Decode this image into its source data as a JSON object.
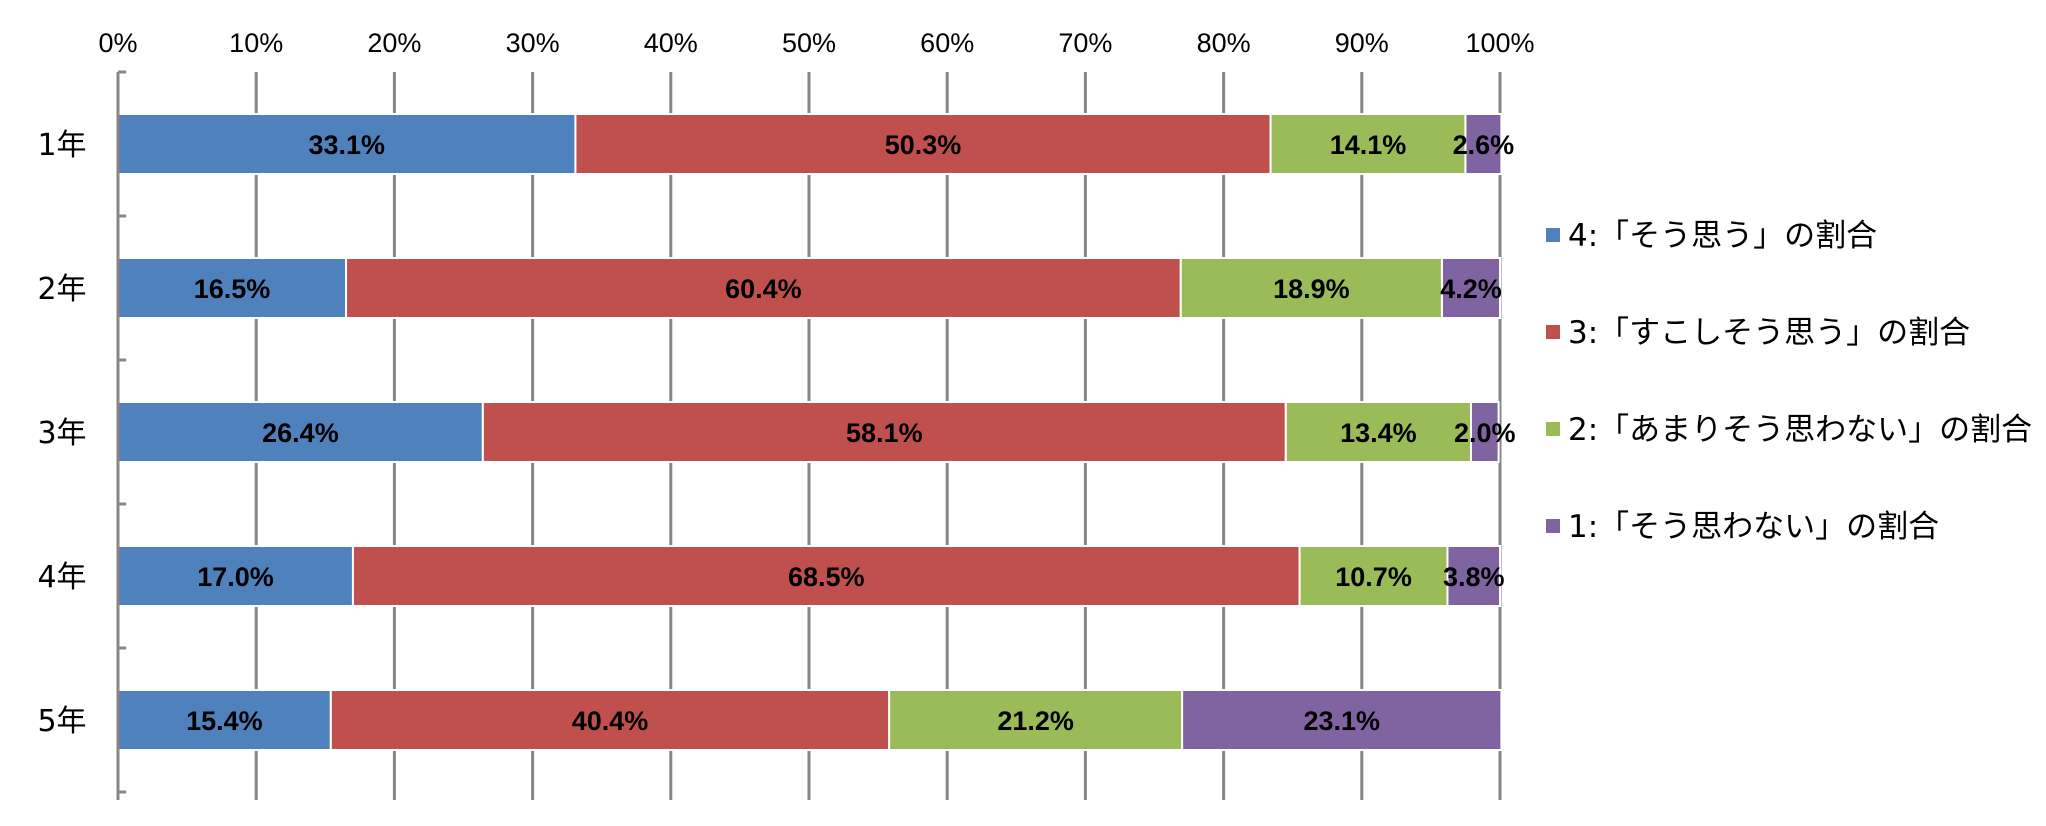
{
  "chart_data": {
    "type": "bar",
    "orientation": "horizontal",
    "stacked": "percent",
    "categories": [
      "1年",
      "2年",
      "3年",
      "4年",
      "5年"
    ],
    "series": [
      {
        "name": "4:「そう思う」の割合",
        "color": "#4f81bd",
        "values": [
          33.1,
          16.5,
          26.4,
          17.0,
          15.4
        ],
        "labels": [
          "33.1%",
          "16.5%",
          "26.4%",
          "17.0%",
          "15.4%"
        ]
      },
      {
        "name": "3:「すこしそう思う」の割合",
        "color": "#c0504d",
        "values": [
          50.3,
          60.4,
          58.1,
          68.5,
          40.4
        ],
        "labels": [
          "50.3%",
          "60.4%",
          "58.1%",
          "68.5%",
          "40.4%"
        ]
      },
      {
        "name": "2:「あまりそう思わない」の割合",
        "color": "#9bbb59",
        "values": [
          14.1,
          18.9,
          13.4,
          10.7,
          21.2
        ],
        "labels": [
          "14.1%",
          "18.9%",
          "13.4%",
          "10.7%",
          "21.2%"
        ]
      },
      {
        "name": "1:「そう思わない」の割合",
        "color": "#8064a2",
        "values": [
          2.6,
          4.2,
          2.0,
          3.8,
          23.1
        ],
        "labels": [
          "2.6%",
          "4.2%",
          "2.0%",
          "3.8%",
          "23.1%"
        ]
      }
    ],
    "x_ticks": [
      "0%",
      "10%",
      "20%",
      "30%",
      "40%",
      "50%",
      "60%",
      "70%",
      "80%",
      "90%",
      "100%"
    ],
    "xlim": [
      0,
      100
    ],
    "x_axis_position": "top",
    "grid": true,
    "legend_position": "right",
    "title": "",
    "xlabel": "",
    "ylabel": ""
  }
}
